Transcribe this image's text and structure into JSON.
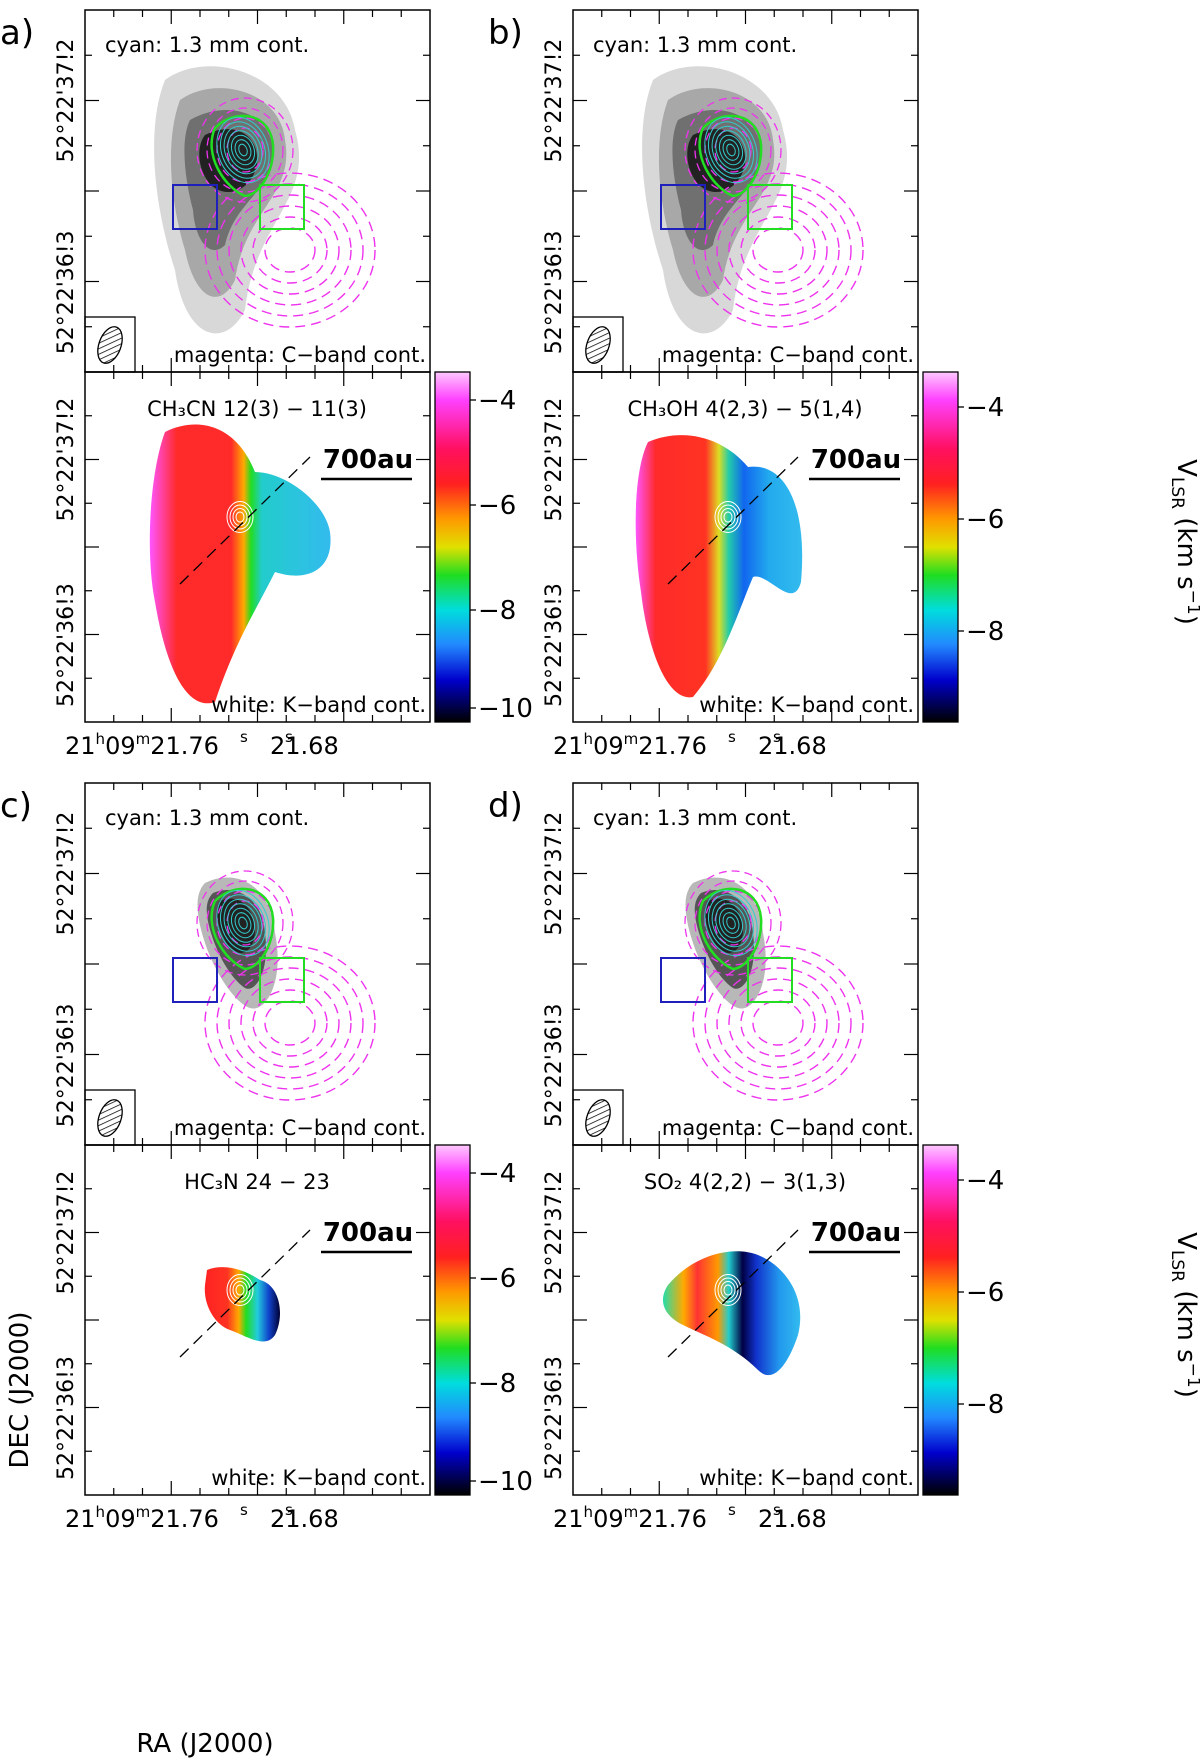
{
  "figure": {
    "ra_label": "RA (J2000)",
    "dec_label": "DEC (J2000)",
    "ra_ticks": [
      "21h09m21.76s",
      "21.68s"
    ],
    "dec_ticks": [
      "52°22'37.2\"",
      "52°22'36.3\""
    ],
    "ra_tick_text": {
      "t1_main": "21",
      "t1_h": "h",
      "t1_mid": "09",
      "t1_m": "m",
      "t1_sec": "21.76",
      "t1_s": "s",
      "t2_sec": "21.68",
      "t2_s": "s"
    },
    "dec_tick_text": {
      "top": "52°22'37!2",
      "bottom": "52°22'36!3"
    },
    "scale_bar_label": "700au",
    "colorbar_label_main": "V",
    "colorbar_label_sub": "LSR",
    "colorbar_label_unit": "(km s",
    "colorbar_label_exp": "−1",
    "colorbar_label_close": ")",
    "colors": {
      "cyan_contour": "#33cccc",
      "magenta_contour": "#ee33ee",
      "green_box": "#22dd22",
      "blue_box": "#1f1fbb",
      "grayscale_dark": "#222222"
    }
  },
  "panels": [
    {
      "letter": "a)",
      "top": {
        "label_top": "cyan: 1.3 mm cont.",
        "label_bottom": "magenta: C−band cont."
      },
      "bottom": {
        "molecule": "CH₃CN  12(3) − 11(3)",
        "label_bottom": "white: K−band cont.",
        "colorbar_ticks": [
          "−4",
          "−6",
          "−8",
          "−10"
        ]
      }
    },
    {
      "letter": "b)",
      "top": {
        "label_top": "cyan: 1.3 mm cont.",
        "label_bottom": "magenta: C−band cont."
      },
      "bottom": {
        "molecule": "CH₃OH  4(2,3) − 5(1,4)",
        "label_bottom": "white: K−band cont.",
        "colorbar_ticks": [
          "−4",
          "−6",
          "−8"
        ]
      }
    },
    {
      "letter": "c)",
      "top": {
        "label_top": "cyan: 1.3 mm cont.",
        "label_bottom": "magenta: C−band cont."
      },
      "bottom": {
        "molecule": "HC₃N  24 − 23",
        "label_bottom": "white: K−band cont.",
        "colorbar_ticks": [
          "−4",
          "−6",
          "−8",
          "−10"
        ]
      }
    },
    {
      "letter": "d)",
      "top": {
        "label_top": "cyan: 1.3 mm cont.",
        "label_bottom": "magenta: C−band cont."
      },
      "bottom": {
        "molecule": "SO₂  4(2,2) − 3(1,3)",
        "label_bottom": "white: K−band cont.",
        "colorbar_ticks": [
          "−4",
          "−6",
          "−8"
        ]
      }
    }
  ]
}
